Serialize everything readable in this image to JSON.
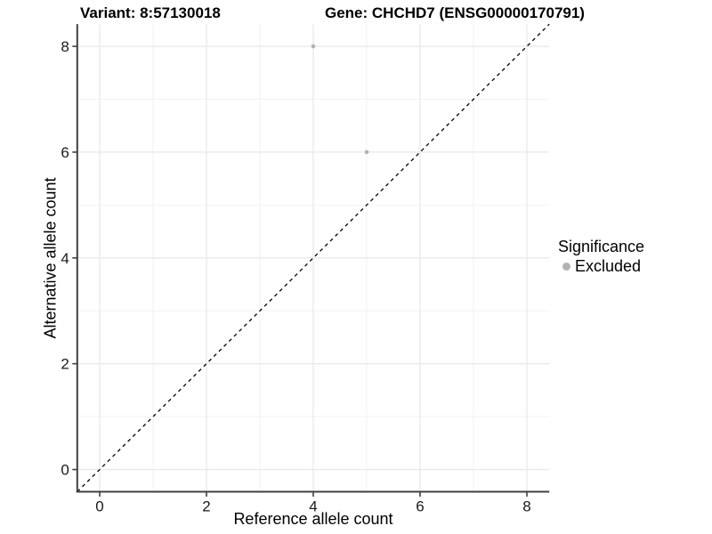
{
  "header": {
    "title_left": "Variant: 8:57130018",
    "title_right": "Gene: CHCHD7 (ENSG00000170791)"
  },
  "axes": {
    "x_label": "Reference allele count",
    "y_label": "Alternative allele count",
    "x_tick_labels": [
      "0",
      "2",
      "4",
      "6",
      "8"
    ],
    "y_tick_labels": [
      "0",
      "2",
      "4",
      "6",
      "8"
    ]
  },
  "legend": {
    "title": "Significance",
    "entries": [
      {
        "label": "Excluded",
        "color": "#b3b3b3"
      }
    ]
  },
  "colors": {
    "point": "#b3b3b3",
    "grid_major": "#e9e9e9",
    "grid_minor": "#f2f2f2",
    "axis_line": "#404040",
    "tick_mark": "#404040",
    "identity_line": "#000000",
    "background": "#ffffff"
  },
  "chart_data": {
    "type": "scatter",
    "title": "Variant: 8:57130018   Gene: CHCHD7 (ENSG00000170791)",
    "xlabel": "Reference allele count",
    "ylabel": "Alternative allele count",
    "xlim": [
      -0.42,
      8.42
    ],
    "ylim": [
      -0.42,
      8.42
    ],
    "x_ticks": [
      0,
      2,
      4,
      6,
      8
    ],
    "y_ticks": [
      0,
      2,
      4,
      6,
      8
    ],
    "x_minor": [
      1,
      3,
      5,
      7
    ],
    "y_minor": [
      1,
      3,
      5,
      7
    ],
    "grid": true,
    "legend_position": "right",
    "series": [
      {
        "name": "Excluded",
        "color": "#b3b3b3",
        "points": [
          {
            "x": 4,
            "y": 8
          },
          {
            "x": 5,
            "y": 6
          }
        ]
      }
    ],
    "identity_line": {
      "style": "dashed",
      "from": [
        -0.42,
        -0.42
      ],
      "to": [
        8.42,
        8.42
      ]
    }
  }
}
